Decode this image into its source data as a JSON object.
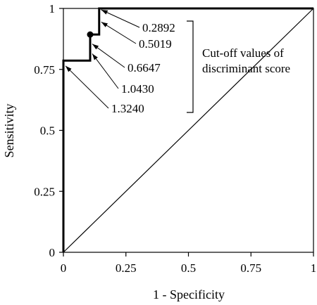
{
  "chart_data": {
    "type": "line",
    "xlabel": "1 - Specificity",
    "ylabel": "Sensitivity",
    "xlim": [
      0,
      1
    ],
    "ylim": [
      0,
      1
    ],
    "x_ticks": [
      "0",
      "0.25",
      "0.5",
      "0.75",
      "1"
    ],
    "y_ticks": [
      "0",
      "0.25",
      "0.5",
      "0.75",
      "1"
    ],
    "grid": false,
    "series": [
      {
        "points": [
          [
            0,
            0
          ],
          [
            0,
            0.786
          ],
          [
            0.107,
            0.786
          ],
          [
            0.107,
            0.893
          ],
          [
            0.143,
            0.893
          ],
          [
            0.143,
            1
          ],
          [
            1,
            1
          ]
        ]
      }
    ],
    "reference_line": [
      [
        0,
        0
      ],
      [
        1,
        1
      ]
    ],
    "marker": {
      "x": 0.107,
      "y": 0.893
    },
    "cutoffs": [
      {
        "label": "0.2892",
        "x": 0.143,
        "y": 1
      },
      {
        "label": "0.5019",
        "x": 0.143,
        "y": 0.95
      },
      {
        "label": "0.6647",
        "x": 0.107,
        "y": 0.86
      },
      {
        "label": "1.0430",
        "x": 0.107,
        "y": 0.82
      },
      {
        "label": "1.3240",
        "x": 0.0,
        "y": 0.77
      }
    ],
    "bracket_annotation": [
      "Cut-off values of",
      "discriminant score"
    ]
  }
}
